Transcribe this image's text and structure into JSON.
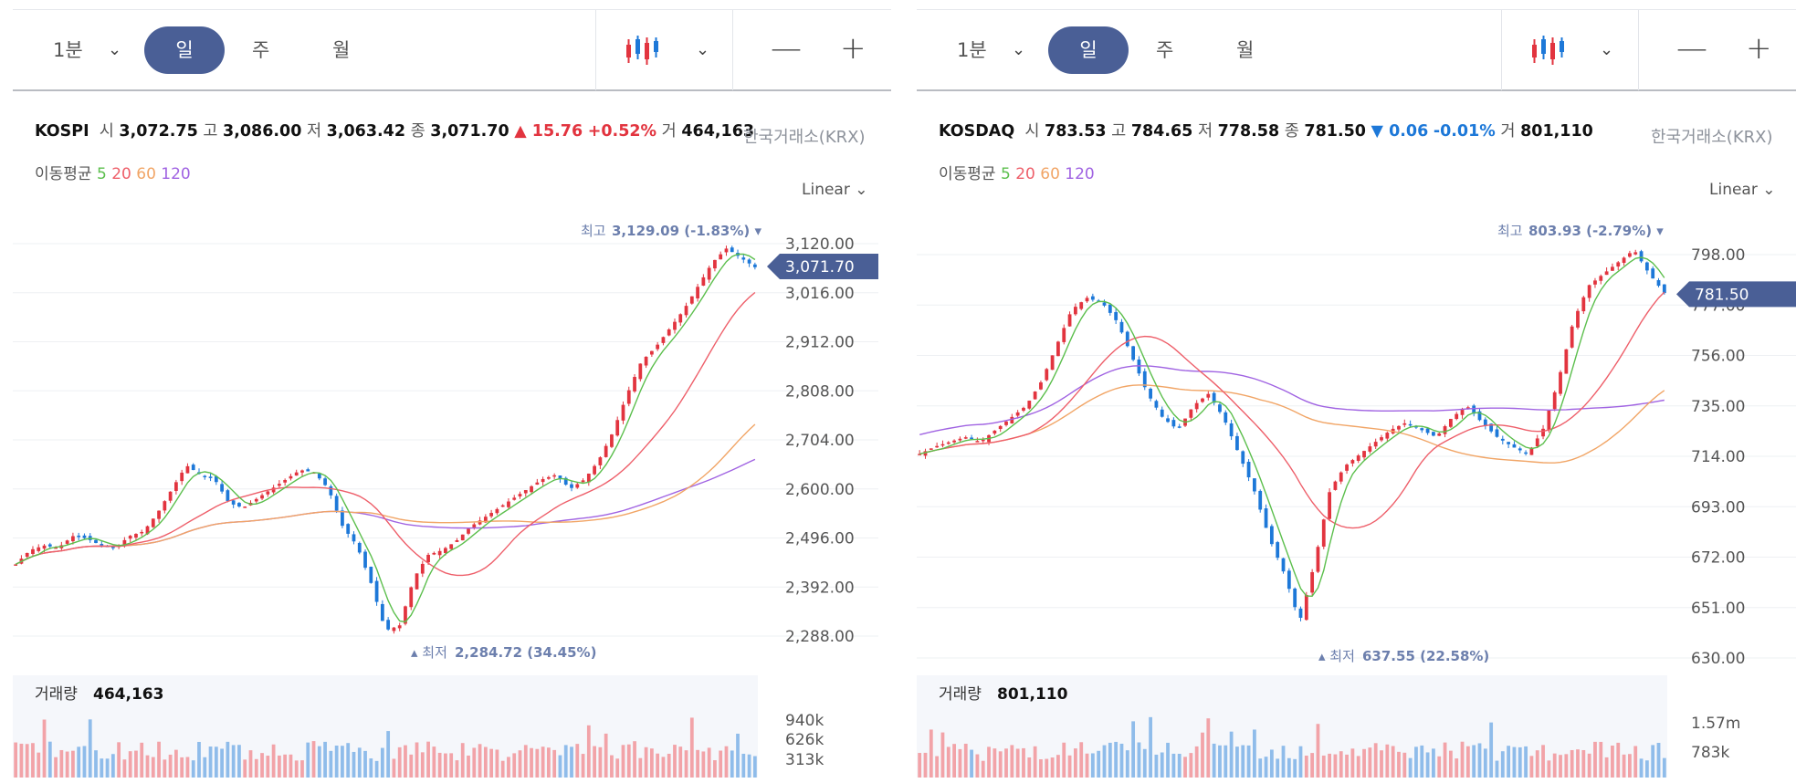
{
  "colors": {
    "up": "#e2343f",
    "down": "#1d78d8",
    "ma5": "#5cbf4d",
    "ma20": "#ee5f6a",
    "ma60": "#f1a566",
    "ma120": "#a063e2",
    "accent": "#4a5f96"
  },
  "toolbar": {
    "interval": "1분",
    "day": "일",
    "week": "주",
    "month": "월",
    "chart_type_icon": "candlestick-icon",
    "zoom_out": "—",
    "zoom_in": "+"
  },
  "panels": [
    {
      "index": {
        "name": "KOSPI",
        "open_label": "시",
        "open": "3,072.75",
        "high_label": "고",
        "high": "3,086.00",
        "low_label": "저",
        "low": "3,063.42",
        "close_label": "종",
        "close": "3,071.70",
        "change": "▲ 15.76",
        "change_pct": "+0.52%",
        "volume_label": "거",
        "volume": "464,163",
        "exchange": "한국거래소(KRX)"
      },
      "ma": {
        "label": "이동평균",
        "p5": "5",
        "p20": "20",
        "p60": "60",
        "p120": "120"
      },
      "scale": "Linear",
      "max_label": "최고",
      "max_value": "3,129.09 (-1.83%)",
      "min_label": "최저",
      "min_value": "2,284.72 (34.45%)",
      "current": "3,071.70",
      "yticks": [
        "3,120.00",
        "3,016.00",
        "2,912.00",
        "2,808.00",
        "2,704.00",
        "2,600.00",
        "2,496.00",
        "2,392.00",
        "2,288.00"
      ],
      "volume_label": "거래량",
      "volume_value": "464,163",
      "vticks": [
        "940k",
        "626k",
        "313k"
      ]
    },
    {
      "index": {
        "name": "KOSDAQ",
        "open_label": "시",
        "open": "783.53",
        "high_label": "고",
        "high": "784.65",
        "low_label": "저",
        "low": "778.58",
        "close_label": "종",
        "close": "781.50",
        "change": "▼ 0.06",
        "change_pct": "-0.01%",
        "volume_label": "거",
        "volume": "801,110",
        "exchange": "한국거래소(KRX)"
      },
      "ma": {
        "label": "이동평균",
        "p5": "5",
        "p20": "20",
        "p60": "60",
        "p120": "120"
      },
      "scale": "Linear",
      "max_label": "최고",
      "max_value": "803.93 (-2.79%)",
      "min_label": "최저",
      "min_value": "637.55 (22.58%)",
      "current": "781.50",
      "yticks": [
        "798.00",
        "777.00",
        "756.00",
        "735.00",
        "714.00",
        "693.00",
        "672.00",
        "651.00",
        "630.00"
      ],
      "volume_label": "거래량",
      "volume_value": "801,110",
      "vticks": [
        "1.57m",
        "783k"
      ]
    }
  ],
  "chart_data": [
    {
      "type": "line",
      "title": "KOSPI",
      "y_range": [
        2288,
        3120
      ],
      "close_path": [
        2440,
        2470,
        2480,
        2475,
        2500,
        2495,
        2480,
        2475,
        2500,
        2510,
        2550,
        2600,
        2650,
        2630,
        2620,
        2570,
        2560,
        2580,
        2600,
        2620,
        2640,
        2635,
        2600,
        2520,
        2480,
        2400,
        2300,
        2310,
        2410,
        2460,
        2470,
        2490,
        2520,
        2540,
        2560,
        2580,
        2600,
        2620,
        2630,
        2600,
        2620,
        2660,
        2720,
        2800,
        2870,
        2900,
        2940,
        2980,
        3030,
        3080,
        3110,
        3090,
        3070
      ],
      "max": 3129.09,
      "min": 2284.72,
      "last": 3071.7
    },
    {
      "type": "line",
      "title": "KOSDAQ",
      "y_range": [
        630,
        798
      ],
      "close_path": [
        715,
        718,
        720,
        722,
        720,
        725,
        730,
        735,
        745,
        760,
        775,
        780,
        778,
        770,
        755,
        740,
        730,
        725,
        735,
        740,
        730,
        715,
        700,
        680,
        665,
        645,
        670,
        700,
        710,
        715,
        720,
        725,
        728,
        725,
        722,
        730,
        735,
        728,
        722,
        718,
        715,
        725,
        745,
        770,
        785,
        790,
        795,
        800,
        790,
        782
      ],
      "max": 803.93,
      "min": 637.55,
      "last": 781.5
    }
  ]
}
